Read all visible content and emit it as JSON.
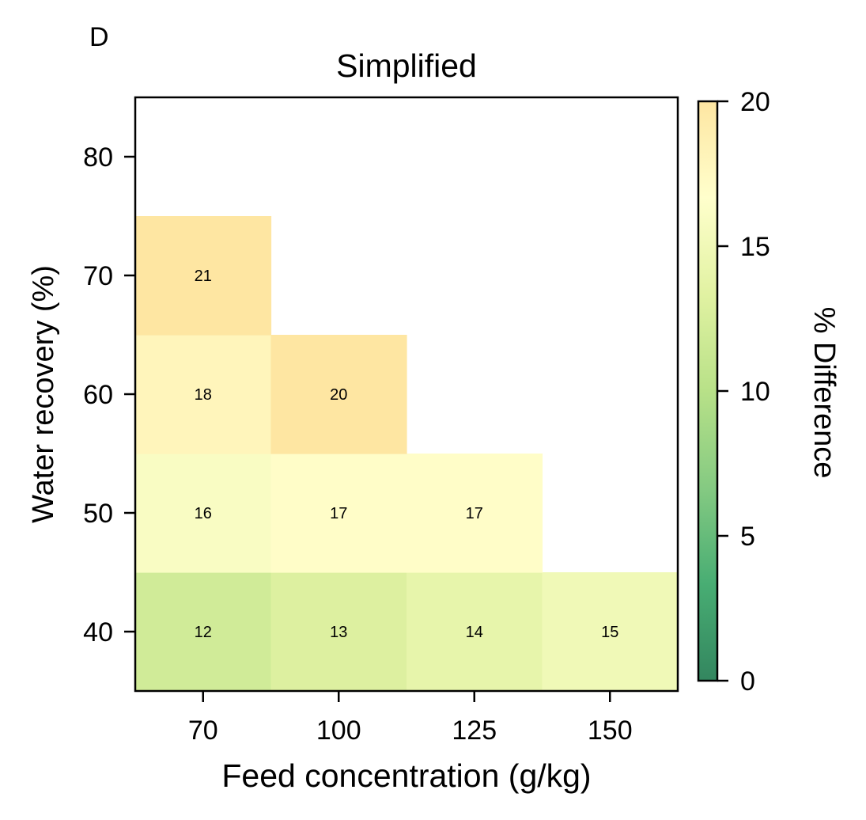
{
  "panel_label": "D",
  "chart_data": {
    "type": "heatmap",
    "title": "Simplified",
    "xlabel": "Feed concentration (g/kg)",
    "ylabel": "Water recovery (%)",
    "x_categories": [
      "70",
      "100",
      "125",
      "150"
    ],
    "y_ticks": [
      "40",
      "50",
      "60",
      "70",
      "80"
    ],
    "cells": [
      {
        "x": "70",
        "y": 40,
        "value": 12
      },
      {
        "x": "100",
        "y": 40,
        "value": 13
      },
      {
        "x": "125",
        "y": 40,
        "value": 14
      },
      {
        "x": "150",
        "y": 40,
        "value": 15
      },
      {
        "x": "70",
        "y": 50,
        "value": 16
      },
      {
        "x": "100",
        "y": 50,
        "value": 17
      },
      {
        "x": "125",
        "y": 50,
        "value": 17
      },
      {
        "x": "70",
        "y": 60,
        "value": 18
      },
      {
        "x": "100",
        "y": 60,
        "value": 20
      },
      {
        "x": "70",
        "y": 70,
        "value": 21
      }
    ],
    "ylim": [
      35,
      85
    ],
    "colorbar": {
      "label": "% Difference",
      "range": [
        0,
        20
      ],
      "ticks": [
        "0",
        "5",
        "10",
        "15",
        "20"
      ],
      "colormap": [
        "#006837",
        "#1a9850",
        "#66bd63",
        "#a6d96a",
        "#d9ef8b",
        "#ffffbf",
        "#fee08b"
      ],
      "alpha": 0.8
    },
    "grid": false
  }
}
